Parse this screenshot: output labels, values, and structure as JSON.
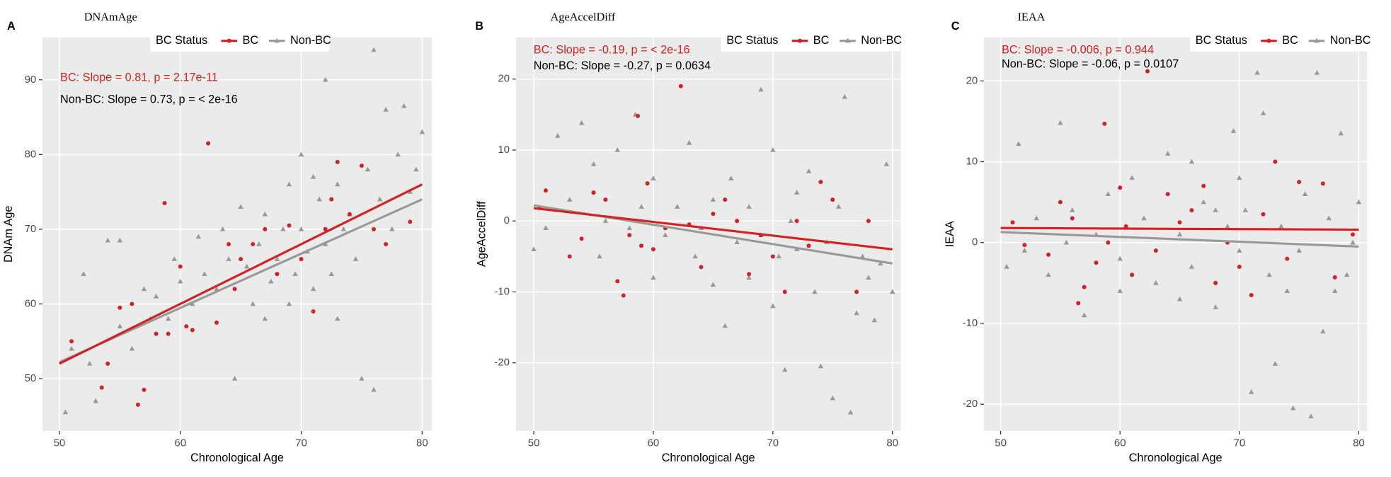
{
  "chart_data": [
    {
      "type": "scatter",
      "panel_label": "A",
      "title": "DNAmAge",
      "xlabel": "Chronological Age",
      "ylabel": "DNAm Age",
      "legend_title": "BC Status",
      "xlim": [
        48.6,
        80.8
      ],
      "ylim": [
        43.0,
        95.7
      ],
      "xticks": [
        50,
        60,
        70,
        80
      ],
      "yticks": [
        50,
        60,
        70,
        80,
        90
      ],
      "grid": true,
      "annotations": [
        {
          "text": "BC: Slope = 0.81, p = 2.17e-11",
          "color": "#d62020"
        },
        {
          "text": "Non-BC: Slope = 0.73, p = < 2e-16",
          "color": "#000000"
        }
      ],
      "series": [
        {
          "name": "BC",
          "color": "#d62020",
          "marker": "circle",
          "x": [
            51,
            53.5,
            54,
            55,
            56,
            56.5,
            57,
            58,
            58.7,
            59,
            60,
            60.5,
            61,
            62.3,
            63,
            64,
            64.5,
            65,
            66,
            67,
            68,
            69,
            70,
            71,
            72,
            73,
            74,
            75,
            76,
            77,
            79,
            72.5
          ],
          "y": [
            55,
            48.8,
            52,
            59.5,
            60,
            46.5,
            48.5,
            56,
            73.5,
            56,
            65,
            57,
            56.5,
            81.5,
            57.5,
            68,
            62,
            66,
            68,
            70,
            64,
            70.5,
            66,
            59,
            70,
            79,
            72,
            78.5,
            70,
            68,
            71,
            74
          ],
          "fit": {
            "x": [
              50,
              80
            ],
            "y": [
              52,
              76
            ]
          }
        },
        {
          "name": "Non-BC",
          "color": "#999999",
          "marker": "triangle",
          "x": [
            50.5,
            51,
            52,
            52.5,
            53,
            54,
            55,
            55,
            56,
            57,
            57.5,
            58,
            59,
            59.5,
            60,
            61,
            61.5,
            62,
            63,
            63.5,
            64,
            64.5,
            65,
            65.5,
            66,
            66.5,
            67,
            67.5,
            68,
            68.5,
            69,
            69.5,
            70,
            70,
            70.5,
            71,
            71.5,
            72,
            72,
            72.5,
            73,
            73.5,
            74,
            74.5,
            75,
            75.5,
            76,
            76,
            76.5,
            77,
            77.5,
            78,
            78.5,
            79,
            79.5,
            80,
            67,
            69,
            71,
            73
          ],
          "y": [
            45.5,
            54,
            64,
            52,
            47,
            68.5,
            68.5,
            57,
            54,
            62,
            58,
            61,
            58,
            66,
            63,
            60,
            69,
            64,
            62,
            70,
            66,
            50,
            73,
            65,
            60,
            68,
            72,
            63,
            66,
            70,
            76,
            64,
            80,
            70,
            67,
            62,
            74,
            90,
            68,
            64,
            76,
            70,
            72,
            66,
            50,
            78,
            48.5,
            94,
            74,
            86,
            70,
            80,
            86.5,
            75,
            78,
            83,
            58,
            60,
            77,
            58
          ],
          "fit": {
            "x": [
              50,
              80
            ],
            "y": [
              52.2,
              74
            ]
          }
        }
      ]
    },
    {
      "type": "scatter",
      "panel_label": "B",
      "title": "AgeAccelDiff",
      "xlabel": "Chronological Age",
      "ylabel": "AgeAccelDiff",
      "legend_title": "BC Status",
      "xlim": [
        48.5,
        80.7
      ],
      "ylim": [
        -29.6,
        25.9
      ],
      "xticks": [
        50,
        60,
        70,
        80
      ],
      "yticks": [
        -20,
        -10,
        0,
        10,
        20
      ],
      "grid": true,
      "annotations": [
        {
          "text": "BC: Slope = -0.19, p = < 2e-16",
          "color": "#d62020"
        },
        {
          "text": "Non-BC: Slope = -0.27, p = 0.0634",
          "color": "#000000"
        }
      ],
      "series": [
        {
          "name": "BC",
          "color": "#d62020",
          "marker": "circle",
          "x": [
            50.5,
            51,
            53,
            54,
            55,
            56,
            57,
            57.5,
            58,
            58.7,
            59,
            59.5,
            60,
            61,
            62.3,
            63,
            64,
            65,
            66,
            67,
            68,
            69,
            70,
            71,
            72,
            73,
            74,
            75,
            77,
            78
          ],
          "y": [
            1.8,
            4.3,
            -5,
            -2.5,
            4,
            3,
            -8.5,
            -10.5,
            -2,
            14.8,
            -3.5,
            5.3,
            -4,
            -1,
            19,
            -0.5,
            -6.5,
            1,
            3,
            0,
            -7.5,
            -2,
            -5,
            -10,
            0,
            -3.5,
            5.5,
            3,
            -10,
            0
          ],
          "fit": {
            "x": [
              50,
              80
            ],
            "y": [
              1.8,
              -4
            ]
          }
        },
        {
          "name": "Non-BC",
          "color": "#999999",
          "marker": "triangle",
          "x": [
            50,
            51,
            52,
            53,
            54,
            55,
            55.5,
            56,
            57,
            58,
            58.5,
            59,
            60,
            61,
            62,
            63,
            63.5,
            64,
            65,
            66,
            66.5,
            67,
            68,
            69,
            69,
            70,
            70.5,
            71,
            71.5,
            72,
            73,
            73.5,
            74,
            74.5,
            75,
            75.5,
            76,
            76.5,
            77,
            77.5,
            78,
            78.5,
            79,
            79.5,
            80,
            60,
            65,
            70,
            72,
            68
          ],
          "y": [
            -4,
            -1,
            12,
            3,
            13.8,
            8,
            -5,
            0,
            10,
            -1,
            15,
            2,
            6,
            -2,
            2,
            11,
            -5,
            -1,
            3,
            -14.8,
            6,
            -3,
            -8,
            -2,
            18.5,
            10,
            -5,
            -21,
            0,
            -4,
            7,
            -10,
            -20.5,
            -3,
            -25,
            2,
            17.5,
            -27,
            -13,
            -5,
            -8,
            -14,
            -6,
            8,
            -10,
            -8,
            -9,
            -12,
            4,
            2
          ],
          "fit": {
            "x": [
              50,
              80
            ],
            "y": [
              2.2,
              -6
            ]
          }
        }
      ]
    },
    {
      "type": "scatter",
      "panel_label": "C",
      "title": "IEAA",
      "xlabel": "Chronological Age",
      "ylabel": "IEAA",
      "legend_title": "BC Status",
      "xlim": [
        48.6,
        80.7
      ],
      "ylim": [
        -23.3,
        25.4
      ],
      "xticks": [
        50,
        60,
        70,
        80
      ],
      "yticks": [
        -20,
        -10,
        0,
        10,
        20
      ],
      "grid": true,
      "annotations": [
        {
          "text": "BC: Slope = -0.006, p = 0.944",
          "color": "#d62020"
        },
        {
          "text": "Non-BC: Slope = -0.06, p = 0.0107",
          "color": "#000000"
        }
      ],
      "series": [
        {
          "name": "BC",
          "color": "#d62020",
          "marker": "circle",
          "x": [
            51,
            52,
            54,
            55,
            56,
            56.5,
            57,
            58,
            58.7,
            59,
            60,
            60.5,
            61,
            62.3,
            63,
            64,
            65,
            66,
            67,
            68,
            69,
            70,
            71,
            72,
            73,
            74,
            75,
            77,
            78,
            79.5
          ],
          "y": [
            2.5,
            -0.3,
            -1.5,
            5,
            3,
            -7.5,
            -5.5,
            -2.5,
            14.7,
            0,
            6.8,
            2,
            -4,
            21.2,
            -1,
            6,
            2.5,
            4,
            7,
            -5,
            0,
            -3,
            -6.5,
            3.5,
            10,
            -2,
            7.5,
            7.3,
            -4.3,
            1
          ],
          "fit": {
            "x": [
              50,
              80
            ],
            "y": [
              1.8,
              1.6
            ]
          }
        },
        {
          "name": "Non-BC",
          "color": "#999999",
          "marker": "triangle",
          "x": [
            50.5,
            51.5,
            52,
            53,
            54,
            55,
            55.5,
            56,
            57,
            58,
            59,
            60,
            61,
            62,
            63,
            64,
            65,
            66,
            67,
            68,
            69,
            69.5,
            70,
            70.5,
            71,
            71.5,
            72,
            72.5,
            73,
            73.5,
            74,
            74.5,
            75,
            75.5,
            76,
            76.5,
            77,
            77.5,
            78,
            78.5,
            79,
            79.5,
            80,
            65,
            70,
            60,
            66,
            68
          ],
          "y": [
            -3,
            12.2,
            -1,
            3,
            -4,
            14.8,
            0,
            4,
            -9,
            1,
            6,
            -2,
            8,
            3,
            -5,
            11,
            1,
            -3,
            5,
            -8,
            2,
            13.8,
            -1,
            4,
            -18.5,
            21,
            16,
            -4,
            -15,
            2,
            -6,
            -20.5,
            -1,
            6,
            -21.5,
            21,
            -11,
            3,
            -6,
            13.5,
            -4,
            0,
            5,
            -7,
            8,
            -6,
            10,
            4
          ],
          "fit": {
            "x": [
              50,
              80
            ],
            "y": [
              1.3,
              -0.5
            ]
          }
        }
      ]
    }
  ]
}
